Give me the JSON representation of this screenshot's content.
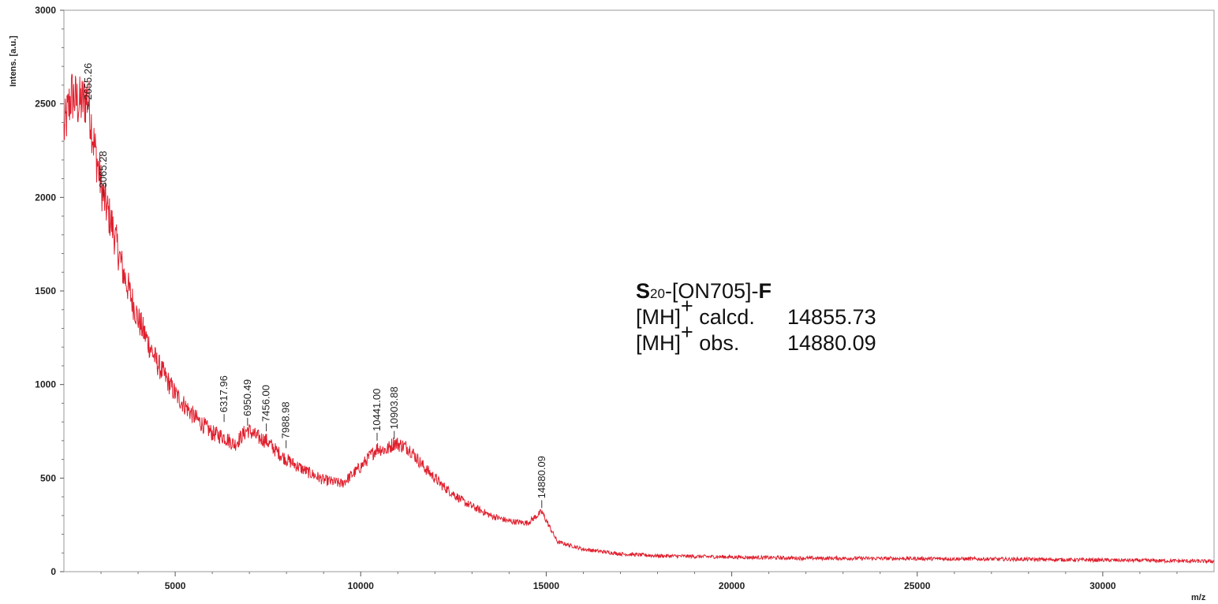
{
  "chart_data": {
    "type": "line",
    "title": "",
    "xlabel": "m/z",
    "ylabel": "Intens. [a.u.]",
    "xlim": [
      2000,
      33000
    ],
    "ylim": [
      0,
      3000
    ],
    "xticks": [
      5000,
      10000,
      15000,
      20000,
      25000,
      30000
    ],
    "xtick_labels": [
      "5000",
      "10000",
      "15000",
      "20000",
      "25000",
      "30000"
    ],
    "yticks": [
      0,
      500,
      1000,
      1500,
      2000,
      2500,
      3000
    ],
    "ytick_labels": [
      "0",
      "500",
      "1000",
      "1500",
      "2000",
      "2500",
      "3000"
    ],
    "grid": false,
    "line_color": "#e0202e",
    "series": [
      {
        "x": [
          2000,
          2200,
          2400,
          2655,
          2800,
          3065,
          3300,
          3600,
          4000,
          4500,
          5000,
          5500,
          6000,
          6318,
          6600,
          6950,
          7200,
          7456,
          7700,
          7989,
          8500,
          9000,
          9500,
          10000,
          10441,
          10700,
          10904,
          11300,
          11700,
          12200,
          12800,
          13500,
          14000,
          14500,
          14880,
          15300,
          16000,
          17000,
          18000,
          20000,
          22000,
          25000,
          28000,
          31000,
          33000
        ],
        "y": [
          2350,
          2550,
          2500,
          2530,
          2300,
          2000,
          1850,
          1600,
          1350,
          1120,
          950,
          830,
          740,
          720,
          680,
          760,
          720,
          700,
          650,
          600,
          540,
          490,
          470,
          560,
          660,
          650,
          690,
          660,
          560,
          460,
          370,
          300,
          270,
          260,
          320,
          160,
          120,
          95,
          85,
          78,
          72,
          70,
          66,
          60,
          55
        ]
      }
    ],
    "peak_labels": [
      "2655.26",
      "3065.28",
      "6317.96",
      "6950.49",
      "7456.00",
      "7988.98",
      "10441.00",
      "10903.88",
      "14880.09"
    ],
    "peak_x": [
      2655.26,
      3065.28,
      6317.96,
      6950.49,
      7456.0,
      7988.98,
      10441.0,
      10903.88,
      14880.09
    ],
    "peak_y": [
      2470,
      2000,
      800,
      780,
      750,
      660,
      700,
      710,
      340
    ]
  },
  "annotation": {
    "line1_bold_a": "S",
    "line1_sub": "20",
    "line1_mid": "-[ON705]-",
    "line1_bold_b": "F",
    "line2_prefix": "[MH]",
    "line2_sup": "+",
    "line2_label": " calcd.",
    "line2_value": "14855.73",
    "line3_prefix": "[MH]",
    "line3_sup": "+",
    "line3_label": " obs.",
    "line3_value": "14880.09"
  }
}
